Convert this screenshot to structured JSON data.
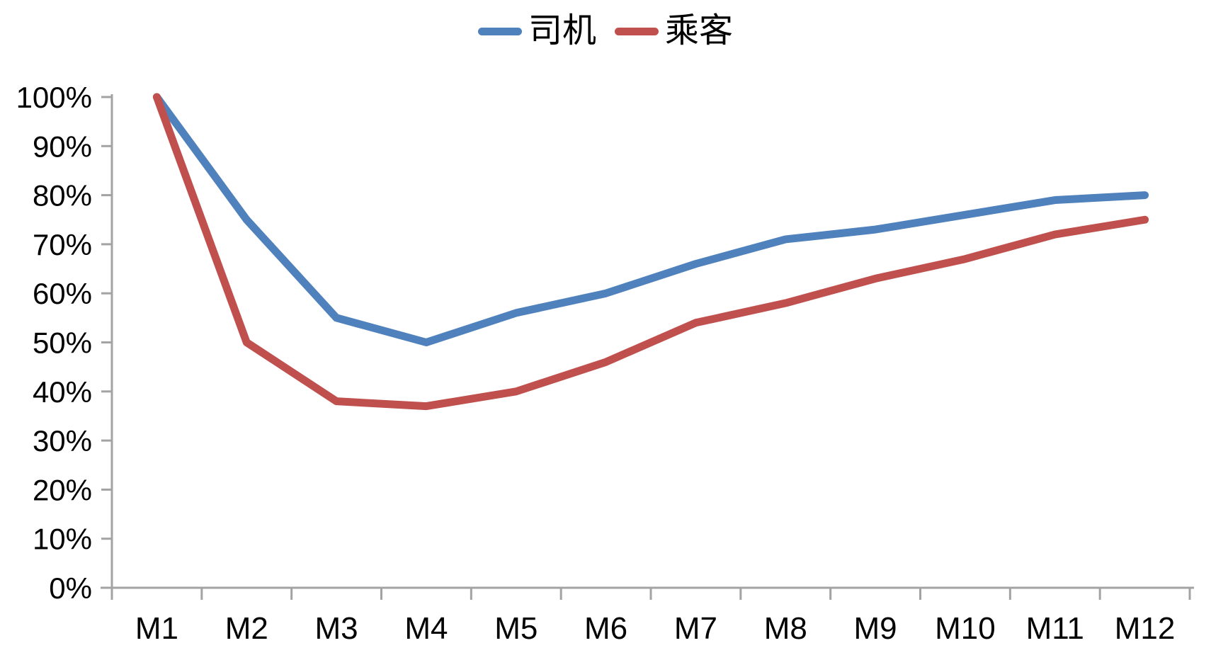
{
  "chart_data": {
    "type": "line",
    "title": "",
    "xlabel": "",
    "ylabel": "",
    "categories": [
      "M1",
      "M2",
      "M3",
      "M4",
      "M5",
      "M6",
      "M7",
      "M8",
      "M9",
      "M10",
      "M11",
      "M12"
    ],
    "series": [
      {
        "name": "司机",
        "color": "#4F81BD",
        "values": [
          100,
          75,
          55,
          50,
          56,
          60,
          66,
          71,
          73,
          76,
          79,
          80
        ]
      },
      {
        "name": "乘客",
        "color": "#C0504D",
        "values": [
          100,
          50,
          38,
          37,
          40,
          46,
          54,
          58,
          63,
          67,
          72,
          75
        ]
      }
    ],
    "ylim": [
      0,
      100
    ],
    "ytick_values": [
      0,
      10,
      20,
      30,
      40,
      50,
      60,
      70,
      80,
      90,
      100
    ],
    "ytick_labels": [
      "0%",
      "10%",
      "20%",
      "30%",
      "40%",
      "50%",
      "60%",
      "70%",
      "80%",
      "90%",
      "100%"
    ],
    "legend_position": "top",
    "grid": false,
    "axis_color": "#A3A3A3",
    "text_color": "#000000",
    "line_width": 11
  }
}
